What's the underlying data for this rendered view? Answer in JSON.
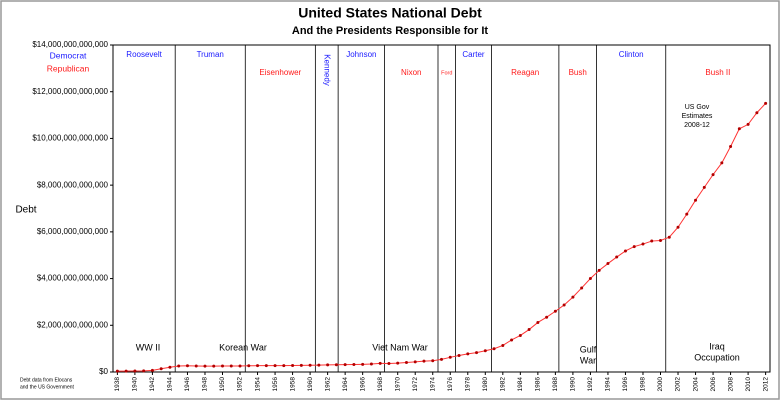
{
  "chart_data": {
    "type": "line",
    "title": "United States National Debt",
    "subtitle": "And the Presidents Responsible for It",
    "y_label": "Debt",
    "source_note": [
      "Debt data from Elocans",
      "and the US Government"
    ],
    "legend": [
      {
        "name": "Democrat",
        "color": "#1a1aff"
      },
      {
        "name": "Republican",
        "color": "#ff1a1a"
      }
    ],
    "x": [
      1938,
      1939,
      1940,
      1941,
      1942,
      1943,
      1944,
      1945,
      1946,
      1947,
      1948,
      1949,
      1950,
      1951,
      1952,
      1953,
      1954,
      1955,
      1956,
      1957,
      1958,
      1959,
      1960,
      1961,
      1962,
      1963,
      1964,
      1965,
      1966,
      1967,
      1968,
      1969,
      1970,
      1971,
      1972,
      1973,
      1974,
      1975,
      1976,
      1977,
      1978,
      1979,
      1980,
      1981,
      1982,
      1983,
      1984,
      1985,
      1986,
      1987,
      1988,
      1989,
      1990,
      1991,
      1992,
      1993,
      1994,
      1995,
      1996,
      1997,
      1998,
      1999,
      2000,
      2001,
      2002,
      2003,
      2004,
      2005,
      2006,
      2007,
      2008,
      2009,
      2010,
      2011,
      2012
    ],
    "series": [
      {
        "name": "National Debt",
        "color": "#ff3333",
        "marker_color": "#b30000",
        "values": [
          37000000000,
          40000000000,
          43000000000,
          49000000000,
          72000000000,
          137000000000,
          201000000000,
          259000000000,
          269000000000,
          258000000000,
          252000000000,
          253000000000,
          257000000000,
          255000000000,
          259000000000,
          266000000000,
          271000000000,
          274000000000,
          273000000000,
          271000000000,
          276000000000,
          285000000000,
          291000000000,
          293000000000,
          303000000000,
          310000000000,
          316000000000,
          322000000000,
          328000000000,
          341000000000,
          370000000000,
          366000000000,
          381000000000,
          408000000000,
          436000000000,
          466000000000,
          484000000000,
          542000000000,
          629000000000,
          706000000000,
          777000000000,
          829000000000,
          909000000000,
          995000000000,
          1137000000000,
          1372000000000,
          1565000000000,
          1817000000000,
          2121000000000,
          2346000000000,
          2601000000000,
          2868000000000,
          3206000000000,
          3598000000000,
          4002000000000,
          4351000000000,
          4643000000000,
          4921000000000,
          5181000000000,
          5369000000000,
          5478000000000,
          5606000000000,
          5629000000000,
          5770000000000,
          6198000000000,
          6760000000000,
          7355000000000,
          7905000000000,
          8451000000000,
          8951000000000,
          9654000000000,
          10413000000000,
          10600000000000,
          11100000000000,
          11500000000000
        ]
      }
    ],
    "xlim": [
      1937.5,
      2012.5
    ],
    "xticks": [
      1938,
      1940,
      1942,
      1944,
      1946,
      1948,
      1950,
      1952,
      1954,
      1956,
      1958,
      1960,
      1962,
      1964,
      1966,
      1968,
      1970,
      1972,
      1974,
      1976,
      1978,
      1980,
      1982,
      1984,
      1986,
      1988,
      1990,
      1992,
      1994,
      1996,
      1998,
      2000,
      2002,
      2004,
      2006,
      2008,
      2010,
      2012
    ],
    "ylim": [
      0,
      14000000000000
    ],
    "yticks": [
      {
        "value": 0,
        "label": "$0"
      },
      {
        "value": 2000000000000,
        "label": "$2,000,000,000,000"
      },
      {
        "value": 4000000000000,
        "label": "$4,000,000,000,000"
      },
      {
        "value": 6000000000000,
        "label": "$6,000,000,000,000"
      },
      {
        "value": 8000000000000,
        "label": "$8,000,000,000,000"
      },
      {
        "value": 10000000000000,
        "label": "$10,000,000,000,000"
      },
      {
        "value": 12000000000000,
        "label": "$12,000,000,000,000"
      },
      {
        "value": 14000000000000,
        "label": "$14,000,000,000,000"
      }
    ],
    "grid": false,
    "presidents": [
      {
        "name": "Roosevelt",
        "color": "#1a1aff",
        "until": 1944.6
      },
      {
        "name": "Truman",
        "color": "#1a1aff",
        "until": 1952.6
      },
      {
        "name": "Eisenhower",
        "color": "#ff1a1a",
        "until": 1960.6
      },
      {
        "name": "Kennedy",
        "color": "#1a1aff",
        "until": 1963.2
      },
      {
        "name": "Johnson",
        "color": "#1a1aff",
        "until": 1968.5
      },
      {
        "name": "Nixon",
        "color": "#ff1a1a",
        "until": 1974.6
      },
      {
        "name": "Ford",
        "color": "#ff1a1a",
        "until": 1976.6
      },
      {
        "name": "Carter",
        "color": "#1a1aff",
        "until": 1980.7
      },
      {
        "name": "Reagan",
        "color": "#ff1a1a",
        "until": 1988.4
      },
      {
        "name": "Bush",
        "color": "#ff1a1a",
        "until": 1992.7
      },
      {
        "name": "Clinton",
        "color": "#1a1aff",
        "until": 2000.6
      },
      {
        "name": "Bush II",
        "color": "#ff1a1a",
        "until": null
      }
    ],
    "annotations": [
      [
        "WW II"
      ],
      [
        "Korean War"
      ],
      [
        "Viet Nam War"
      ],
      [
        "Gulf",
        "War"
      ],
      [
        "Iraq",
        "Occupation"
      ],
      [
        "US Gov",
        "Estimates",
        "2008-12"
      ]
    ]
  }
}
